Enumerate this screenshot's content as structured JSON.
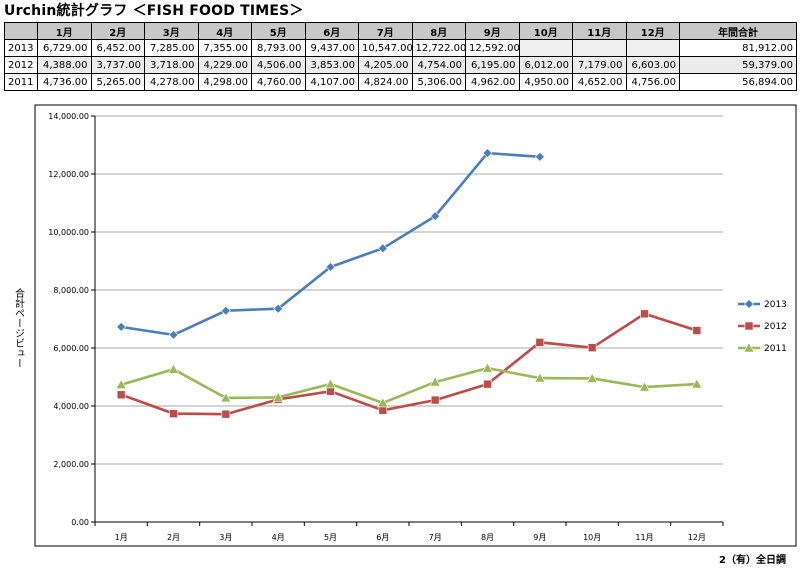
{
  "page_title": "Urchin統計グラフ ＜FISH FOOD TIMES＞",
  "table": {
    "header": [
      "",
      "1月",
      "2月",
      "3月",
      "4月",
      "5月",
      "6月",
      "7月",
      "8月",
      "9月",
      "10月",
      "11月",
      "12月",
      "年間合計"
    ],
    "rows": [
      {
        "year": "2013",
        "cells": [
          "6,729.00",
          "6,452.00",
          "7,285.00",
          "7,355.00",
          "8,793.00",
          "9,437.00",
          "10,547.00",
          "12,722.00",
          "12,592.00",
          "",
          "",
          "",
          "81,912.00"
        ]
      },
      {
        "year": "2012",
        "cells": [
          "4,388.00",
          "3,737.00",
          "3,718.00",
          "4,229.00",
          "4,506.00",
          "3,853.00",
          "4,205.00",
          "4,754.00",
          "6,195.00",
          "6,012.00",
          "7,179.00",
          "6,603.00",
          "59,379.00"
        ]
      },
      {
        "year": "2011",
        "cells": [
          "4,736.00",
          "5,265.00",
          "4,278.00",
          "4,298.00",
          "4,760.00",
          "4,107.00",
          "4,824.00",
          "5,306.00",
          "4,962.00",
          "4,950.00",
          "4,652.00",
          "4,756.00",
          "56,894.00"
        ]
      }
    ]
  },
  "chart_data": {
    "type": "line",
    "categories": [
      "1月",
      "2月",
      "3月",
      "4月",
      "5月",
      "6月",
      "7月",
      "8月",
      "9月",
      "10月",
      "11月",
      "12月"
    ],
    "ylabel": "合計ページビュー",
    "ylim": [
      0,
      14000
    ],
    "yticks": [
      "0.00",
      "2,000.00",
      "4,000.00",
      "6,000.00",
      "8,000.00",
      "10,000.00",
      "12,000.00",
      "14,000.00"
    ],
    "grid": true,
    "legend_position": "right",
    "series": [
      {
        "name": "2013",
        "color": "#4a7ebb",
        "marker": "diamond",
        "values": [
          6729,
          6452,
          7285,
          7355,
          8793,
          9437,
          10547,
          12722,
          12592,
          null,
          null,
          null
        ]
      },
      {
        "name": "2012",
        "color": "#be4b48",
        "marker": "square",
        "values": [
          4388,
          3737,
          3718,
          4229,
          4506,
          3853,
          4205,
          4754,
          6195,
          6012,
          7179,
          6603
        ]
      },
      {
        "name": "2011",
        "color": "#98b954",
        "marker": "triangle",
        "values": [
          4736,
          5265,
          4278,
          4298,
          4760,
          4107,
          4824,
          5306,
          4962,
          4950,
          4652,
          4756
        ]
      }
    ]
  },
  "footer": "2（有）全日調"
}
